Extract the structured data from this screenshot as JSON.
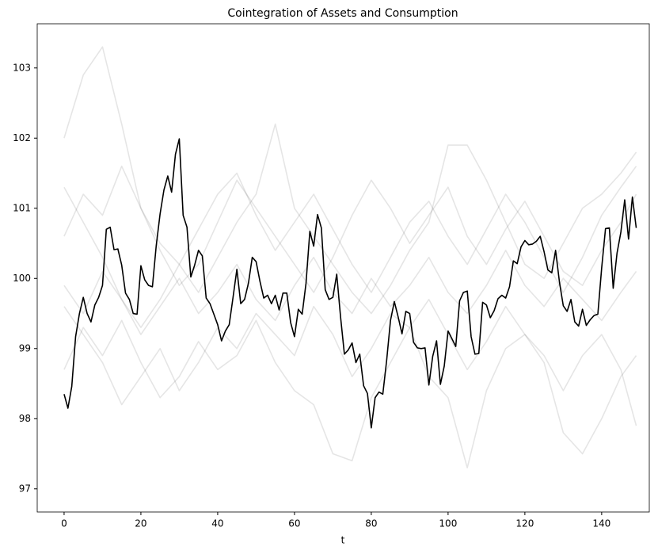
{
  "chart_data": {
    "type": "line",
    "title": "Cointegration of Assets and Consumption",
    "x_label": "t",
    "x": [
      0,
      1,
      2,
      3,
      4,
      5,
      6,
      7,
      8,
      9,
      10,
      11,
      12,
      13,
      14,
      15,
      16,
      17,
      18,
      19,
      20,
      21,
      22,
      23,
      24,
      25,
      26,
      27,
      28,
      29,
      30,
      31,
      32,
      33,
      34,
      35,
      36,
      37,
      38,
      39,
      40,
      41,
      42,
      43,
      44,
      45,
      46,
      47,
      48,
      49,
      50,
      51,
      52,
      53,
      54,
      55,
      56,
      57,
      58,
      59,
      60,
      61,
      62,
      63,
      64,
      65,
      66,
      67,
      68,
      69,
      70,
      71,
      72,
      73,
      74,
      75,
      76,
      77,
      78,
      79,
      80,
      81,
      82,
      83,
      84,
      85,
      86,
      87,
      88,
      89,
      90,
      91,
      92,
      93,
      94,
      95,
      96,
      97,
      98,
      99,
      100,
      101,
      102,
      103,
      104,
      105,
      106,
      107,
      108,
      109,
      110,
      111,
      112,
      113,
      114,
      115,
      116,
      117,
      118,
      119,
      120,
      121,
      122,
      123,
      124,
      125,
      126,
      127,
      128,
      129,
      130,
      131,
      132,
      133,
      134,
      135,
      136,
      137,
      138,
      139,
      140,
      141,
      142,
      143,
      144,
      145,
      146,
      147,
      148,
      149
    ],
    "series": [
      {
        "color": "#000000",
        "alpha": 0.1,
        "x": [
          0,
          5,
          10,
          15,
          20,
          25,
          30,
          35,
          40,
          45,
          50,
          55,
          60,
          65,
          70,
          75,
          80,
          85,
          90,
          95,
          100,
          105,
          110,
          115,
          120,
          125,
          130,
          135,
          140,
          145,
          149
        ],
        "values": [
          102.0,
          102.9,
          103.3,
          102.2,
          101.0,
          100.5,
          100.2,
          99.8,
          100.3,
          100.8,
          101.2,
          102.2,
          101.0,
          100.6,
          100.2,
          99.8,
          99.5,
          99.9,
          100.4,
          100.8,
          101.9,
          101.9,
          101.4,
          100.8,
          100.2,
          100.0,
          100.5,
          101.0,
          101.2,
          101.5,
          101.8
        ]
      },
      {
        "color": "#000000",
        "alpha": 0.1,
        "x": [
          0,
          5,
          10,
          15,
          20,
          25,
          30,
          35,
          40,
          45,
          50,
          55,
          60,
          65,
          70,
          75,
          80,
          85,
          90,
          95,
          100,
          105,
          110,
          115,
          120,
          125,
          130,
          135,
          140,
          145,
          149
        ],
        "values": [
          99.6,
          99.2,
          98.8,
          98.2,
          98.6,
          99.0,
          98.4,
          98.8,
          99.3,
          99.0,
          99.5,
          99.2,
          98.9,
          99.6,
          99.2,
          98.6,
          99.0,
          99.5,
          99.3,
          98.6,
          98.3,
          97.3,
          98.4,
          99.0,
          99.2,
          98.9,
          98.4,
          98.9,
          99.2,
          98.7,
          97.9
        ]
      },
      {
        "color": "#000000",
        "alpha": 0.1,
        "x": [
          0,
          5,
          10,
          15,
          20,
          25,
          30,
          35,
          40,
          45,
          50,
          55,
          60,
          65,
          70,
          75,
          80,
          85,
          90,
          95,
          100,
          105,
          110,
          115,
          120,
          125,
          130,
          135,
          140,
          145,
          149
        ],
        "values": [
          100.6,
          101.2,
          100.9,
          101.6,
          101.0,
          100.4,
          99.9,
          100.2,
          100.8,
          101.4,
          101.0,
          100.6,
          100.2,
          99.8,
          100.3,
          100.9,
          101.4,
          101.0,
          100.5,
          100.9,
          101.3,
          100.6,
          100.2,
          100.7,
          101.1,
          100.6,
          100.1,
          99.9,
          100.4,
          100.8,
          101.2
        ]
      },
      {
        "color": "#000000",
        "alpha": 0.1,
        "x": [
          0,
          5,
          10,
          15,
          20,
          25,
          30,
          35,
          40,
          45,
          50,
          55,
          60,
          65,
          70,
          75,
          80,
          85,
          90,
          95,
          100,
          105,
          110,
          115,
          120,
          125,
          130,
          135,
          140,
          145,
          149
        ],
        "values": [
          98.7,
          99.3,
          98.9,
          99.4,
          98.8,
          98.3,
          98.6,
          99.1,
          98.7,
          98.9,
          99.4,
          98.8,
          98.4,
          98.2,
          97.5,
          97.4,
          98.3,
          98.8,
          99.3,
          99.7,
          99.2,
          98.7,
          99.1,
          99.6,
          99.2,
          98.8,
          97.8,
          97.5,
          98.0,
          98.6,
          98.9
        ]
      },
      {
        "color": "#000000",
        "alpha": 0.1,
        "x": [
          0,
          5,
          10,
          15,
          20,
          25,
          30,
          35,
          40,
          45,
          50,
          55,
          60,
          65,
          70,
          75,
          80,
          85,
          90,
          95,
          100,
          105,
          110,
          115,
          120,
          125,
          130,
          135,
          140,
          145,
          149
        ],
        "values": [
          99.9,
          99.5,
          100.1,
          99.7,
          99.2,
          99.6,
          100.0,
          99.5,
          99.8,
          100.2,
          99.7,
          99.4,
          99.9,
          100.3,
          99.8,
          99.5,
          100.0,
          99.6,
          99.9,
          100.3,
          99.8,
          99.5,
          99.9,
          100.4,
          99.9,
          99.6,
          100.0,
          99.7,
          99.4,
          99.8,
          100.1
        ]
      },
      {
        "color": "#000000",
        "alpha": 0.1,
        "x": [
          0,
          5,
          10,
          15,
          20,
          25,
          30,
          35,
          40,
          45,
          50,
          55,
          60,
          65,
          70,
          75,
          80,
          85,
          90,
          95,
          100,
          105,
          110,
          115,
          120,
          125,
          130,
          135,
          140,
          145,
          149
        ],
        "values": [
          101.3,
          100.8,
          100.3,
          99.7,
          99.3,
          99.7,
          100.2,
          100.7,
          101.2,
          101.5,
          100.9,
          100.4,
          100.8,
          101.2,
          100.7,
          100.2,
          99.8,
          100.3,
          100.8,
          101.1,
          100.6,
          100.2,
          100.7,
          101.2,
          100.8,
          100.3,
          99.8,
          100.3,
          100.9,
          101.3,
          101.6
        ]
      },
      {
        "color": "#000000",
        "alpha": 1,
        "values": [
          98.35,
          98.15,
          98.46,
          99.17,
          99.5,
          99.73,
          99.5,
          99.38,
          99.62,
          99.73,
          99.9,
          100.7,
          100.73,
          100.41,
          100.42,
          100.19,
          99.79,
          99.7,
          99.5,
          99.49,
          100.18,
          99.98,
          99.9,
          99.88,
          100.47,
          100.92,
          101.26,
          101.46,
          101.23,
          101.77,
          101.99,
          100.9,
          100.73,
          100.02,
          100.19,
          100.4,
          100.32,
          99.72,
          99.64,
          99.49,
          99.34,
          99.11,
          99.25,
          99.34,
          99.73,
          100.13,
          99.64,
          99.7,
          99.93,
          100.3,
          100.24,
          99.96,
          99.72,
          99.76,
          99.64,
          99.76,
          99.55,
          99.79,
          99.79,
          99.37,
          99.17,
          99.56,
          99.49,
          99.93,
          100.67,
          100.46,
          100.91,
          100.72,
          99.84,
          99.7,
          99.73,
          100.06,
          99.45,
          98.92,
          98.98,
          99.08,
          98.8,
          98.92,
          98.47,
          98.36,
          97.87,
          98.3,
          98.38,
          98.35,
          98.83,
          99.4,
          99.67,
          99.45,
          99.21,
          99.53,
          99.5,
          99.09,
          99.01,
          99.0,
          99.01,
          98.48,
          98.89,
          99.11,
          98.49,
          98.75,
          99.25,
          99.14,
          99.03,
          99.68,
          99.8,
          99.82,
          99.17,
          98.92,
          98.93,
          99.66,
          99.62,
          99.44,
          99.54,
          99.71,
          99.76,
          99.72,
          99.88,
          100.25,
          100.21,
          100.45,
          100.54,
          100.48,
          100.49,
          100.53,
          100.6,
          100.38,
          100.12,
          100.08,
          100.4,
          99.95,
          99.61,
          99.53,
          99.7,
          99.38,
          99.32,
          99.56,
          99.33,
          99.41,
          99.47,
          99.49,
          100.15,
          100.71,
          100.72,
          99.86,
          100.36,
          100.66,
          101.12,
          100.56,
          101.16,
          100.72
        ]
      }
    ],
    "xlim": [
      -7,
      152.4
    ],
    "ylim": [
      96.67,
      103.63
    ],
    "xticks": [
      0,
      20,
      40,
      60,
      80,
      100,
      120,
      140
    ],
    "yticks": [
      97,
      98,
      99,
      100,
      101,
      102,
      103
    ]
  }
}
